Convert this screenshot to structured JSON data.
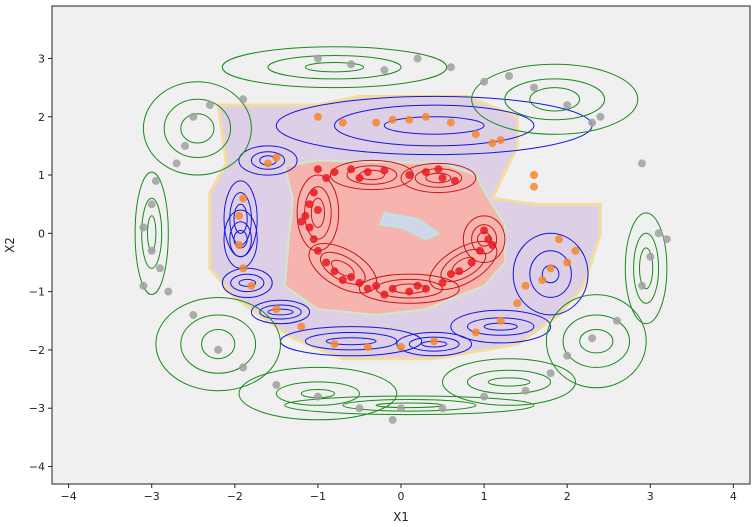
{
  "chart_data": {
    "type": "scatter",
    "title": "",
    "xlabel": "X1",
    "ylabel": "X2",
    "xlim": [
      -4.2,
      4.2
    ],
    "ylim": [
      -4.3,
      3.9
    ],
    "xticks": [
      -4,
      -3,
      -2,
      -1,
      0,
      1,
      2,
      3,
      4
    ],
    "yticks": [
      -4,
      -3,
      -2,
      -1,
      0,
      1,
      2,
      3
    ],
    "grid": false,
    "legend": "none",
    "colors": {
      "background": "#f0f0f0",
      "inner_region": "#f7b4ae",
      "middle_region": "#ddd0e6",
      "class_inner": "#e8191e",
      "class_middle": "#f5872a",
      "class_outer": "#a0a0a0",
      "contour_inner": "#c8141a",
      "contour_middle": "#1414e0",
      "contour_outer": "#1a8a1a"
    },
    "regions": {
      "middle": [
        [
          -2.2,
          2.2
        ],
        [
          -1.0,
          2.2
        ],
        [
          -0.5,
          2.35
        ],
        [
          0.8,
          2.35
        ],
        [
          1.4,
          2.0
        ],
        [
          1.4,
          1.5
        ],
        [
          1.1,
          0.6
        ],
        [
          1.6,
          0.5
        ],
        [
          2.4,
          0.5
        ],
        [
          2.4,
          0.0
        ],
        [
          2.2,
          -0.9
        ],
        [
          1.9,
          -1.4
        ],
        [
          1.4,
          -1.9
        ],
        [
          0.4,
          -2.15
        ],
        [
          -0.7,
          -2.15
        ],
        [
          -1.3,
          -1.8
        ],
        [
          -1.6,
          -1.5
        ],
        [
          -2.0,
          -1.1
        ],
        [
          -2.3,
          -0.6
        ],
        [
          -2.3,
          0.7
        ],
        [
          -2.1,
          1.2
        ]
      ],
      "inner": [
        [
          -1.4,
          1.15
        ],
        [
          -1.0,
          1.25
        ],
        [
          0.5,
          1.2
        ],
        [
          0.9,
          1.0
        ],
        [
          1.05,
          0.6
        ],
        [
          1.25,
          0.15
        ],
        [
          1.25,
          -0.5
        ],
        [
          1.0,
          -0.9
        ],
        [
          0.3,
          -1.3
        ],
        [
          -0.3,
          -1.4
        ],
        [
          -1.0,
          -1.3
        ],
        [
          -1.4,
          -0.9
        ],
        [
          -1.35,
          -0.1
        ],
        [
          -1.3,
          0.6
        ]
      ],
      "hole": [
        [
          -0.2,
          0.35
        ],
        [
          0.2,
          0.25
        ],
        [
          0.45,
          0.0
        ],
        [
          0.3,
          -0.1
        ],
        [
          0.0,
          0.1
        ],
        [
          -0.25,
          0.15
        ]
      ]
    },
    "series": [
      {
        "points": [
          [
            -1.0,
            1.1
          ],
          [
            -0.8,
            1.05
          ],
          [
            -0.6,
            1.1
          ],
          [
            -0.4,
            1.05
          ],
          [
            -0.2,
            1.08
          ],
          [
            0.1,
            1.0
          ],
          [
            0.3,
            1.05
          ],
          [
            0.5,
            0.95
          ],
          [
            0.65,
            0.9
          ],
          [
            0.45,
            1.1
          ],
          [
            -0.5,
            0.95
          ],
          [
            -0.9,
            0.95
          ],
          [
            -1.05,
            0.7
          ],
          [
            -1.1,
            0.5
          ],
          [
            -1.15,
            0.3
          ],
          [
            -1.1,
            0.1
          ],
          [
            -1.05,
            -0.1
          ],
          [
            -1.0,
            -0.3
          ],
          [
            -0.9,
            -0.5
          ],
          [
            -0.8,
            -0.65
          ],
          [
            -0.7,
            -0.8
          ],
          [
            -0.5,
            -0.85
          ],
          [
            -0.3,
            -0.9
          ],
          [
            -0.1,
            -0.95
          ],
          [
            0.1,
            -1.0
          ],
          [
            0.3,
            -0.95
          ],
          [
            0.5,
            -0.85
          ],
          [
            0.7,
            -0.65
          ],
          [
            0.85,
            -0.5
          ],
          [
            0.95,
            -0.3
          ],
          [
            1.05,
            -0.1
          ],
          [
            1.0,
            0.05
          ],
          [
            1.1,
            -0.2
          ],
          [
            -1.2,
            0.2
          ],
          [
            -1.0,
            0.4
          ],
          [
            -0.6,
            -0.75
          ],
          [
            0.2,
            -0.9
          ],
          [
            0.6,
            -0.7
          ],
          [
            -0.2,
            -1.05
          ],
          [
            -0.4,
            -0.95
          ]
        ]
      },
      {
        "points": [
          [
            -1.0,
            2.0
          ],
          [
            -0.7,
            1.9
          ],
          [
            -0.3,
            1.9
          ],
          [
            -0.1,
            1.95
          ],
          [
            0.1,
            1.95
          ],
          [
            0.3,
            2.0
          ],
          [
            0.6,
            1.9
          ],
          [
            0.9,
            1.7
          ],
          [
            1.1,
            1.55
          ],
          [
            1.2,
            1.6
          ],
          [
            1.6,
            1.0
          ],
          [
            1.6,
            0.8
          ],
          [
            1.9,
            -0.1
          ],
          [
            2.1,
            -0.3
          ],
          [
            1.8,
            -0.6
          ],
          [
            1.5,
            -0.9
          ],
          [
            1.4,
            -1.2
          ],
          [
            1.2,
            -1.5
          ],
          [
            0.9,
            -1.7
          ],
          [
            0.4,
            -1.85
          ],
          [
            0.0,
            -1.95
          ],
          [
            -0.4,
            -1.95
          ],
          [
            -0.8,
            -1.9
          ],
          [
            -1.2,
            -1.6
          ],
          [
            -1.5,
            -1.3
          ],
          [
            -1.8,
            -0.9
          ],
          [
            -1.9,
            -0.6
          ],
          [
            -1.95,
            -0.2
          ],
          [
            -1.95,
            0.3
          ],
          [
            -1.9,
            0.6
          ],
          [
            -1.6,
            1.2
          ],
          [
            -1.5,
            1.3
          ],
          [
            1.7,
            -0.8
          ],
          [
            2.0,
            -0.5
          ]
        ]
      },
      {
        "points": [
          [
            -2.5,
            2.0
          ],
          [
            -2.3,
            2.2
          ],
          [
            -2.6,
            1.5
          ],
          [
            -2.7,
            1.2
          ],
          [
            -1.9,
            2.3
          ],
          [
            -1.0,
            3.0
          ],
          [
            -0.6,
            2.9
          ],
          [
            -0.2,
            2.8
          ],
          [
            0.2,
            3.0
          ],
          [
            0.6,
            2.85
          ],
          [
            1.0,
            2.6
          ],
          [
            1.3,
            2.7
          ],
          [
            1.6,
            2.5
          ],
          [
            2.0,
            2.2
          ],
          [
            2.4,
            2.0
          ],
          [
            2.3,
            1.9
          ],
          [
            2.9,
            1.2
          ],
          [
            -3.0,
            0.5
          ],
          [
            -3.1,
            0.1
          ],
          [
            -3.0,
            -0.3
          ],
          [
            -2.9,
            -0.6
          ],
          [
            -3.1,
            -0.9
          ],
          [
            -2.95,
            0.9
          ],
          [
            3.1,
            0.0
          ],
          [
            3.0,
            -0.4
          ],
          [
            2.9,
            -0.9
          ],
          [
            3.2,
            -0.1
          ],
          [
            2.6,
            -1.5
          ],
          [
            2.3,
            -1.8
          ],
          [
            2.0,
            -2.1
          ],
          [
            1.8,
            -2.4
          ],
          [
            1.5,
            -2.7
          ],
          [
            1.0,
            -2.8
          ],
          [
            0.5,
            -3.0
          ],
          [
            0.0,
            -3.0
          ],
          [
            -0.5,
            -3.0
          ],
          [
            -1.0,
            -2.8
          ],
          [
            -1.5,
            -2.6
          ],
          [
            -1.9,
            -2.3
          ],
          [
            -2.2,
            -2.0
          ],
          [
            -2.5,
            -1.4
          ],
          [
            -2.8,
            -1.0
          ],
          [
            -0.1,
            -3.2
          ]
        ]
      }
    ],
    "ellipse_groups": [
      {
        "style": "inner",
        "cx": -0.35,
        "cy": 1.0,
        "rx": [
          0.15,
          0.3,
          0.5
        ],
        "ry": [
          0.08,
          0.16,
          0.25
        ],
        "angle": 0
      },
      {
        "style": "inner",
        "cx": 0.45,
        "cy": 0.95,
        "rx": [
          0.15,
          0.28,
          0.45
        ],
        "ry": [
          0.08,
          0.16,
          0.25
        ],
        "angle": 0
      },
      {
        "style": "inner",
        "cx": -1.0,
        "cy": 0.35,
        "rx": [
          0.08,
          0.16,
          0.25
        ],
        "ry": [
          0.25,
          0.45,
          0.65
        ],
        "angle": 0
      },
      {
        "style": "inner",
        "cx": -0.7,
        "cy": -0.6,
        "rx": [
          0.15,
          0.3,
          0.45
        ],
        "ry": [
          0.1,
          0.2,
          0.32
        ],
        "angle": -30
      },
      {
        "style": "inner",
        "cx": 0.1,
        "cy": -0.95,
        "rx": [
          0.2,
          0.4,
          0.6
        ],
        "ry": [
          0.08,
          0.16,
          0.25
        ],
        "angle": 0
      },
      {
        "style": "inner",
        "cx": 0.75,
        "cy": -0.55,
        "rx": [
          0.15,
          0.3,
          0.45
        ],
        "ry": [
          0.1,
          0.2,
          0.3
        ],
        "angle": 30
      },
      {
        "style": "inner",
        "cx": 1.0,
        "cy": -0.1,
        "rx": [
          0.08,
          0.15,
          0.25
        ],
        "ry": [
          0.12,
          0.25,
          0.4
        ],
        "angle": 0
      },
      {
        "style": "middle",
        "cx": 0.4,
        "cy": 1.85,
        "rx": [
          0.6,
          1.2,
          1.9
        ],
        "ry": [
          0.15,
          0.35,
          0.5
        ],
        "angle": 0
      },
      {
        "style": "middle",
        "cx": -1.6,
        "cy": 1.25,
        "rx": [
          0.1,
          0.2,
          0.35
        ],
        "ry": [
          0.08,
          0.15,
          0.25
        ],
        "angle": 0
      },
      {
        "style": "middle",
        "cx": -1.93,
        "cy": 0.25,
        "rx": [
          0.08,
          0.13,
          0.2
        ],
        "ry": [
          0.25,
          0.45,
          0.65
        ],
        "angle": 0
      },
      {
        "style": "middle",
        "cx": -1.93,
        "cy": -0.1,
        "rx": [
          0.08,
          0.13,
          0.2
        ],
        "ry": [
          0.15,
          0.3,
          0.5
        ],
        "angle": 0
      },
      {
        "style": "middle",
        "cx": -1.85,
        "cy": -0.85,
        "rx": [
          0.1,
          0.2,
          0.3
        ],
        "ry": [
          0.06,
          0.15,
          0.25
        ],
        "angle": 0
      },
      {
        "style": "middle",
        "cx": -1.45,
        "cy": -1.35,
        "rx": [
          0.15,
          0.25,
          0.35
        ],
        "ry": [
          0.05,
          0.12,
          0.2
        ],
        "angle": 0
      },
      {
        "style": "middle",
        "cx": -0.6,
        "cy": -1.85,
        "rx": [
          0.3,
          0.55,
          0.85
        ],
        "ry": [
          0.06,
          0.15,
          0.25
        ],
        "angle": 0
      },
      {
        "style": "middle",
        "cx": 0.4,
        "cy": -1.9,
        "rx": [
          0.15,
          0.3,
          0.45
        ],
        "ry": [
          0.05,
          0.12,
          0.2
        ],
        "angle": 0
      },
      {
        "style": "middle",
        "cx": 1.2,
        "cy": -1.6,
        "rx": [
          0.2,
          0.4,
          0.6
        ],
        "ry": [
          0.06,
          0.15,
          0.28
        ],
        "angle": 0
      },
      {
        "style": "middle",
        "cx": 1.8,
        "cy": -0.7,
        "rx": [
          0.1,
          0.25,
          0.45
        ],
        "ry": [
          0.15,
          0.4,
          0.7
        ],
        "angle": 0
      },
      {
        "style": "outer",
        "cx": -2.45,
        "cy": 1.8,
        "rx": [
          0.2,
          0.4,
          0.65
        ],
        "ry": [
          0.25,
          0.5,
          0.8
        ],
        "angle": 0
      },
      {
        "style": "outer",
        "cx": -0.8,
        "cy": 2.85,
        "rx": [
          0.35,
          0.8,
          1.35
        ],
        "ry": [
          0.08,
          0.2,
          0.35
        ],
        "angle": 0
      },
      {
        "style": "outer",
        "cx": 1.85,
        "cy": 2.3,
        "rx": [
          0.3,
          0.6,
          1.0
        ],
        "ry": [
          0.2,
          0.35,
          0.6
        ],
        "angle": 0
      },
      {
        "style": "outer",
        "cx": -3.0,
        "cy": 0.0,
        "rx": [
          0.05,
          0.12,
          0.2
        ],
        "ry": [
          0.3,
          0.6,
          1.05
        ],
        "angle": 0
      },
      {
        "style": "outer",
        "cx": 2.95,
        "cy": -0.6,
        "rx": [
          0.08,
          0.15,
          0.25
        ],
        "ry": [
          0.35,
          0.6,
          0.95
        ],
        "angle": 0
      },
      {
        "style": "outer",
        "cx": -2.2,
        "cy": -1.9,
        "rx": [
          0.2,
          0.45,
          0.75
        ],
        "ry": [
          0.25,
          0.5,
          0.8
        ],
        "angle": 0
      },
      {
        "style": "outer",
        "cx": 2.35,
        "cy": -1.85,
        "rx": [
          0.2,
          0.4,
          0.6
        ],
        "ry": [
          0.2,
          0.45,
          0.8
        ],
        "angle": 0
      },
      {
        "style": "outer",
        "cx": 1.3,
        "cy": -2.55,
        "rx": [
          0.25,
          0.5,
          0.8
        ],
        "ry": [
          0.07,
          0.2,
          0.4
        ],
        "angle": 0
      },
      {
        "style": "outer",
        "cx": -1.0,
        "cy": -2.75,
        "rx": [
          0.2,
          0.5,
          0.95
        ],
        "ry": [
          0.07,
          0.2,
          0.45
        ],
        "angle": 0
      },
      {
        "style": "outer",
        "cx": 0.1,
        "cy": -2.95,
        "rx": [
          0.4,
          0.8,
          1.5
        ],
        "ry": [
          0.04,
          0.1,
          0.16
        ],
        "angle": 0
      }
    ]
  }
}
